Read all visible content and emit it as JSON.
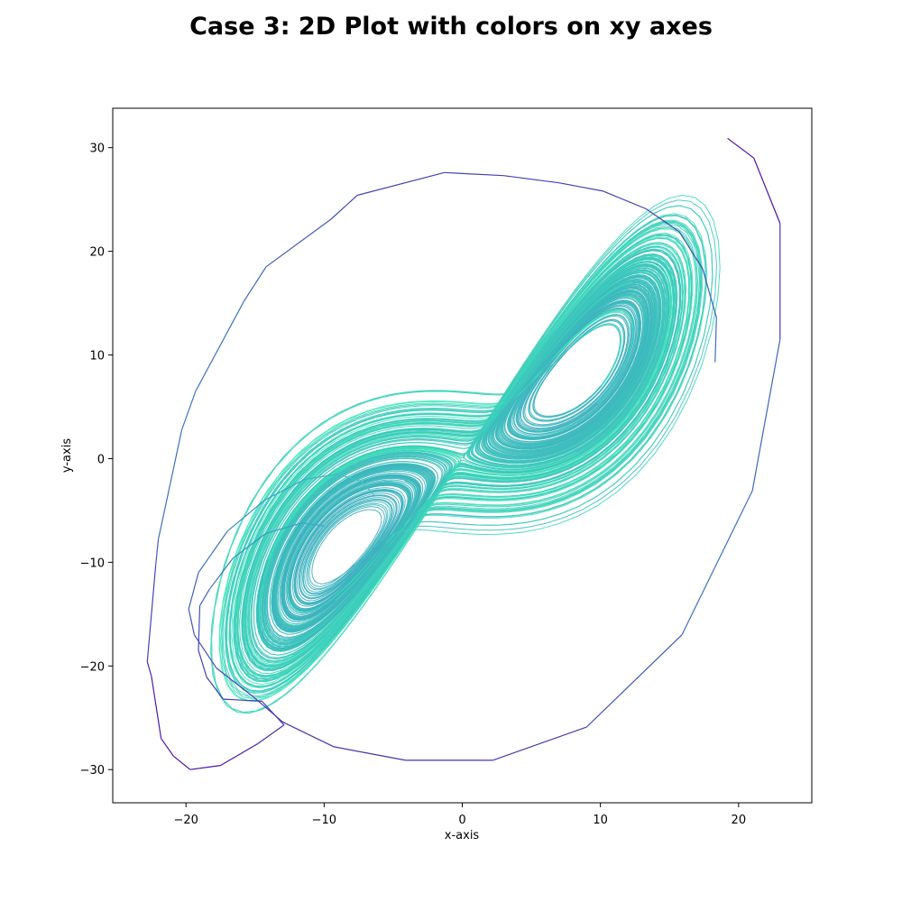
{
  "figure": {
    "title": "Case 3: 2D Plot with colors on xy axes"
  },
  "chart_data": {
    "type": "line",
    "title": "Case 3: 2D Plot with colors on xy axes",
    "xlabel": "x-axis",
    "ylabel": "y-axis",
    "xlim": [
      -25.3,
      25.3
    ],
    "ylim": [
      -33.2,
      33.8
    ],
    "xticks": [
      -20,
      -10,
      0,
      10,
      20
    ],
    "yticks": [
      -30,
      -20,
      -10,
      0,
      10,
      20,
      30
    ],
    "xtick_labels": [
      "−20",
      "−10",
      "0",
      "10",
      "20"
    ],
    "ytick_labels": [
      "−30",
      "−20",
      "−10",
      "0",
      "10",
      "20",
      "30"
    ],
    "grid": false,
    "colormap": {
      "name": "viridis-like (purple to aquamarine)",
      "start": "#4b0fa8",
      "mid": "#3a8fc2",
      "end": "#40f5b8"
    },
    "series": [
      {
        "values": [
          [
            23.0,
            11.5
          ],
          [
            21.0,
            -3.1
          ],
          [
            15.9,
            -17.0
          ],
          [
            9.0,
            -25.9
          ],
          [
            2.2,
            -29.1
          ],
          [
            -4.1,
            -29.1
          ],
          [
            -9.3,
            -27.8
          ],
          [
            -13.0,
            -25.4
          ],
          [
            -15.2,
            -22.9
          ],
          [
            -17.8,
            -20.2
          ],
          [
            -19.4,
            -17.0
          ],
          [
            -19.8,
            -14.5
          ],
          [
            -19.1,
            -11.0
          ],
          [
            -17.0,
            -7.0
          ],
          [
            -14.3,
            -4.0
          ],
          [
            -11.4,
            -2.0
          ],
          [
            -9.0,
            -1.5
          ],
          [
            -7.3,
            -2.2
          ],
          [
            -6.4,
            -3.5
          ]
        ]
      },
      {
        "values": [
          [
            -22.8,
            -19.6
          ],
          [
            -22.5,
            -21.0
          ],
          [
            -21.8,
            -27.0
          ],
          [
            -20.9,
            -28.7
          ],
          [
            -19.7,
            -30.0
          ],
          [
            -17.5,
            -29.6
          ],
          [
            -14.8,
            -27.5
          ],
          [
            -12.9,
            -25.7
          ],
          [
            -14.5,
            -23.4
          ],
          [
            -17.3,
            -23.2
          ],
          [
            -18.5,
            -21.1
          ],
          [
            -19.1,
            -18.5
          ],
          [
            -19.0,
            -14.2
          ],
          [
            -18.3,
            -12.6
          ],
          [
            -16.6,
            -9.6
          ],
          [
            -14.2,
            -7.2
          ],
          [
            -11.6,
            -6.2
          ],
          [
            -10.0,
            -6.5
          ]
        ]
      },
      {
        "values": [
          [
            -22.8,
            -19.6
          ],
          [
            -22.2,
            -10.4
          ],
          [
            -22.0,
            -7.8
          ],
          [
            -20.3,
            2.8
          ],
          [
            -19.3,
            6.5
          ],
          [
            -15.8,
            15.2
          ],
          [
            -14.2,
            18.5
          ],
          [
            -9.5,
            23.1
          ],
          [
            -7.6,
            25.4
          ],
          [
            -1.3,
            27.6
          ],
          [
            3.0,
            27.3
          ],
          [
            7.0,
            26.6
          ],
          [
            10.2,
            25.8
          ],
          [
            13.3,
            24.1
          ],
          [
            15.7,
            21.9
          ],
          [
            17.4,
            18.3
          ],
          [
            18.4,
            13.6
          ],
          [
            18.3,
            9.3
          ]
        ]
      },
      {
        "values": [
          [
            19.2,
            30.9
          ],
          [
            21.1,
            29.0
          ],
          [
            23.0,
            22.7
          ],
          [
            23.0,
            11.5
          ]
        ]
      }
    ],
    "attractor": {
      "description": "Lorenz attractor trajectory, two lobes",
      "lobe_centers": [
        [
          -8.5,
          -8.5
        ],
        [
          8.5,
          8.5
        ]
      ]
    }
  }
}
